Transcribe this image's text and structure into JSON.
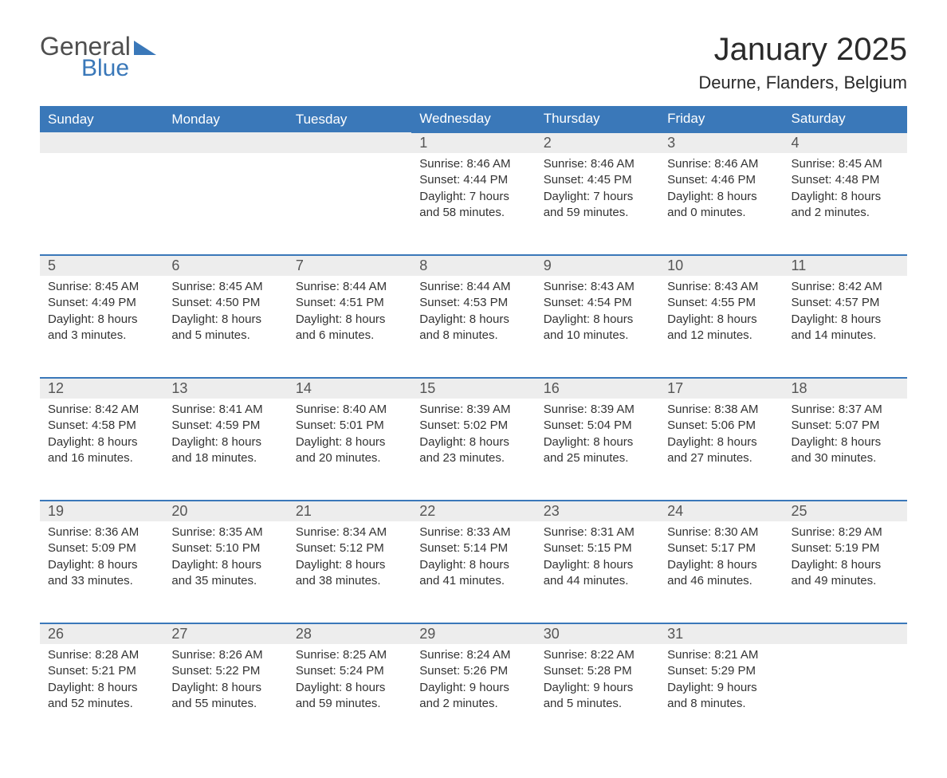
{
  "logo": {
    "word1": "General",
    "word2": "Blue"
  },
  "title": "January 2025",
  "location": "Deurne, Flanders, Belgium",
  "columns": [
    "Sunday",
    "Monday",
    "Tuesday",
    "Wednesday",
    "Thursday",
    "Friday",
    "Saturday"
  ],
  "colors": {
    "header_bg": "#3a78b9",
    "header_text": "#ffffff",
    "daynum_bg": "#ededed",
    "daynum_text": "#555555",
    "body_text": "#333333",
    "rule": "#3a78b9",
    "page_bg": "#ffffff",
    "logo_gray": "#4f4f4f",
    "logo_blue": "#3a78b9"
  },
  "typography": {
    "title_fontsize": 40,
    "location_fontsize": 22,
    "header_fontsize": 17,
    "daynum_fontsize": 18,
    "body_fontsize": 15
  },
  "weeks": [
    [
      null,
      null,
      null,
      {
        "n": "1",
        "sunrise": "8:46 AM",
        "sunset": "4:44 PM",
        "daylight": "7 hours and 58 minutes."
      },
      {
        "n": "2",
        "sunrise": "8:46 AM",
        "sunset": "4:45 PM",
        "daylight": "7 hours and 59 minutes."
      },
      {
        "n": "3",
        "sunrise": "8:46 AM",
        "sunset": "4:46 PM",
        "daylight": "8 hours and 0 minutes."
      },
      {
        "n": "4",
        "sunrise": "8:45 AM",
        "sunset": "4:48 PM",
        "daylight": "8 hours and 2 minutes."
      }
    ],
    [
      {
        "n": "5",
        "sunrise": "8:45 AM",
        "sunset": "4:49 PM",
        "daylight": "8 hours and 3 minutes."
      },
      {
        "n": "6",
        "sunrise": "8:45 AM",
        "sunset": "4:50 PM",
        "daylight": "8 hours and 5 minutes."
      },
      {
        "n": "7",
        "sunrise": "8:44 AM",
        "sunset": "4:51 PM",
        "daylight": "8 hours and 6 minutes."
      },
      {
        "n": "8",
        "sunrise": "8:44 AM",
        "sunset": "4:53 PM",
        "daylight": "8 hours and 8 minutes."
      },
      {
        "n": "9",
        "sunrise": "8:43 AM",
        "sunset": "4:54 PM",
        "daylight": "8 hours and 10 minutes."
      },
      {
        "n": "10",
        "sunrise": "8:43 AM",
        "sunset": "4:55 PM",
        "daylight": "8 hours and 12 minutes."
      },
      {
        "n": "11",
        "sunrise": "8:42 AM",
        "sunset": "4:57 PM",
        "daylight": "8 hours and 14 minutes."
      }
    ],
    [
      {
        "n": "12",
        "sunrise": "8:42 AM",
        "sunset": "4:58 PM",
        "daylight": "8 hours and 16 minutes."
      },
      {
        "n": "13",
        "sunrise": "8:41 AM",
        "sunset": "4:59 PM",
        "daylight": "8 hours and 18 minutes."
      },
      {
        "n": "14",
        "sunrise": "8:40 AM",
        "sunset": "5:01 PM",
        "daylight": "8 hours and 20 minutes."
      },
      {
        "n": "15",
        "sunrise": "8:39 AM",
        "sunset": "5:02 PM",
        "daylight": "8 hours and 23 minutes."
      },
      {
        "n": "16",
        "sunrise": "8:39 AM",
        "sunset": "5:04 PM",
        "daylight": "8 hours and 25 minutes."
      },
      {
        "n": "17",
        "sunrise": "8:38 AM",
        "sunset": "5:06 PM",
        "daylight": "8 hours and 27 minutes."
      },
      {
        "n": "18",
        "sunrise": "8:37 AM",
        "sunset": "5:07 PM",
        "daylight": "8 hours and 30 minutes."
      }
    ],
    [
      {
        "n": "19",
        "sunrise": "8:36 AM",
        "sunset": "5:09 PM",
        "daylight": "8 hours and 33 minutes."
      },
      {
        "n": "20",
        "sunrise": "8:35 AM",
        "sunset": "5:10 PM",
        "daylight": "8 hours and 35 minutes."
      },
      {
        "n": "21",
        "sunrise": "8:34 AM",
        "sunset": "5:12 PM",
        "daylight": "8 hours and 38 minutes."
      },
      {
        "n": "22",
        "sunrise": "8:33 AM",
        "sunset": "5:14 PM",
        "daylight": "8 hours and 41 minutes."
      },
      {
        "n": "23",
        "sunrise": "8:31 AM",
        "sunset": "5:15 PM",
        "daylight": "8 hours and 44 minutes."
      },
      {
        "n": "24",
        "sunrise": "8:30 AM",
        "sunset": "5:17 PM",
        "daylight": "8 hours and 46 minutes."
      },
      {
        "n": "25",
        "sunrise": "8:29 AM",
        "sunset": "5:19 PM",
        "daylight": "8 hours and 49 minutes."
      }
    ],
    [
      {
        "n": "26",
        "sunrise": "8:28 AM",
        "sunset": "5:21 PM",
        "daylight": "8 hours and 52 minutes."
      },
      {
        "n": "27",
        "sunrise": "8:26 AM",
        "sunset": "5:22 PM",
        "daylight": "8 hours and 55 minutes."
      },
      {
        "n": "28",
        "sunrise": "8:25 AM",
        "sunset": "5:24 PM",
        "daylight": "8 hours and 59 minutes."
      },
      {
        "n": "29",
        "sunrise": "8:24 AM",
        "sunset": "5:26 PM",
        "daylight": "9 hours and 2 minutes."
      },
      {
        "n": "30",
        "sunrise": "8:22 AM",
        "sunset": "5:28 PM",
        "daylight": "9 hours and 5 minutes."
      },
      {
        "n": "31",
        "sunrise": "8:21 AM",
        "sunset": "5:29 PM",
        "daylight": "9 hours and 8 minutes."
      },
      null
    ]
  ],
  "labels": {
    "sunrise": "Sunrise: ",
    "sunset": "Sunset: ",
    "daylight": "Daylight: "
  }
}
